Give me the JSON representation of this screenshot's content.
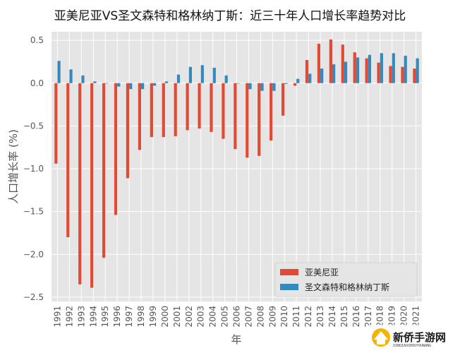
{
  "chart_data": {
    "type": "bar",
    "title": "亚美尼亚VS圣文森特和格林纳丁斯：近三十年人口增长率趋势对比",
    "xlabel": "年",
    "ylabel": "人口增长率 (%)",
    "ylim": [
      -2.55,
      0.6
    ],
    "yticks": [
      0.5,
      0.0,
      -0.5,
      -1.0,
      -1.5,
      -2.0,
      -2.5
    ],
    "ytick_labels": [
      "0.5",
      "0.0",
      "−0.5",
      "−1.0",
      "−1.5",
      "−2.0",
      "−2.5"
    ],
    "grid": true,
    "legend_position": "bottom-right",
    "categories": [
      "1991",
      "1992",
      "1993",
      "1994",
      "1995",
      "1996",
      "1997",
      "1998",
      "1999",
      "2000",
      "2001",
      "2002",
      "2003",
      "2004",
      "2005",
      "2006",
      "2007",
      "2008",
      "2009",
      "2010",
      "2011",
      "2012",
      "2013",
      "2014",
      "2015",
      "2016",
      "2017",
      "2018",
      "2019",
      "2020",
      "2021"
    ],
    "series": [
      {
        "name": "亚美尼亚",
        "color": "#E24A33",
        "values": [
          -0.94,
          -1.8,
          -2.35,
          -2.39,
          -2.04,
          -1.54,
          -1.11,
          -0.78,
          -0.63,
          -0.63,
          -0.62,
          -0.55,
          -0.53,
          -0.57,
          -0.65,
          -0.77,
          -0.87,
          -0.85,
          -0.67,
          -0.38,
          -0.03,
          0.27,
          0.46,
          0.51,
          0.45,
          0.36,
          0.29,
          0.24,
          0.2,
          0.19,
          0.17
        ]
      },
      {
        "name": "圣文森特和格林纳丁斯",
        "color": "#348ABD",
        "values": [
          0.26,
          0.16,
          0.09,
          0.02,
          0.0,
          -0.04,
          -0.07,
          -0.07,
          -0.03,
          0.02,
          0.1,
          0.19,
          0.21,
          0.18,
          0.09,
          0.0,
          -0.07,
          -0.09,
          -0.09,
          -0.01,
          0.05,
          0.11,
          0.17,
          0.22,
          0.25,
          0.3,
          0.33,
          0.35,
          0.35,
          0.32,
          0.29
        ]
      }
    ]
  },
  "watermark": {
    "title": "新侨手游网",
    "subtitle": "XINQIAOSHOUYOUWANG"
  }
}
